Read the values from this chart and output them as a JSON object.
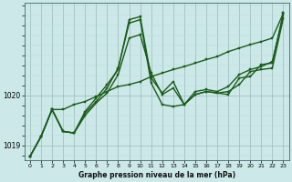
{
  "title": "Graphe pression niveau de la mer (hPa)",
  "background_color": "#cce8e8",
  "plot_bg_color": "#cce8e8",
  "grid_color_major": "#99bbbb",
  "grid_color_minor": "#bbdddd",
  "line_color": "#1a5c1a",
  "marker_color": "#1a5c1a",
  "xlim": [
    -0.5,
    23.5
  ],
  "ylim": [
    1018.7,
    1021.85
  ],
  "yticks": [
    1019,
    1020
  ],
  "xticks": [
    0,
    1,
    2,
    3,
    4,
    5,
    6,
    7,
    8,
    9,
    10,
    11,
    12,
    13,
    14,
    15,
    16,
    17,
    18,
    19,
    20,
    21,
    22,
    23
  ],
  "series": [
    [
      1018.78,
      1019.18,
      1019.72,
      1019.72,
      1019.82,
      1019.88,
      1019.98,
      1020.08,
      1020.18,
      1020.22,
      1020.28,
      1020.38,
      1020.45,
      1020.52,
      1020.58,
      1020.65,
      1020.72,
      1020.78,
      1020.88,
      1020.95,
      1021.02,
      1021.08,
      1021.15,
      1021.65
    ],
    [
      1018.78,
      1019.18,
      1019.72,
      1019.28,
      1019.25,
      1019.6,
      1019.85,
      1020.05,
      1020.42,
      1021.15,
      1021.22,
      1020.45,
      1020.02,
      1020.15,
      1019.82,
      1020.02,
      1020.08,
      1020.05,
      1020.08,
      1020.22,
      1020.48,
      1020.52,
      1020.55,
      1021.55
    ],
    [
      1018.78,
      1019.18,
      1019.72,
      1019.28,
      1019.25,
      1019.65,
      1019.88,
      1020.15,
      1020.55,
      1021.45,
      1021.52,
      1020.25,
      1019.82,
      1019.78,
      1019.82,
      1020.02,
      1020.08,
      1020.05,
      1020.02,
      1020.35,
      1020.38,
      1020.62,
      1020.65,
      1021.65
    ],
    [
      1018.78,
      1019.18,
      1019.72,
      1019.28,
      1019.25,
      1019.68,
      1019.95,
      1020.22,
      1020.52,
      1021.52,
      1021.58,
      1020.35,
      1020.05,
      1020.28,
      1019.82,
      1020.08,
      1020.12,
      1020.08,
      1020.18,
      1020.42,
      1020.52,
      1020.58,
      1020.68,
      1021.62
    ]
  ]
}
